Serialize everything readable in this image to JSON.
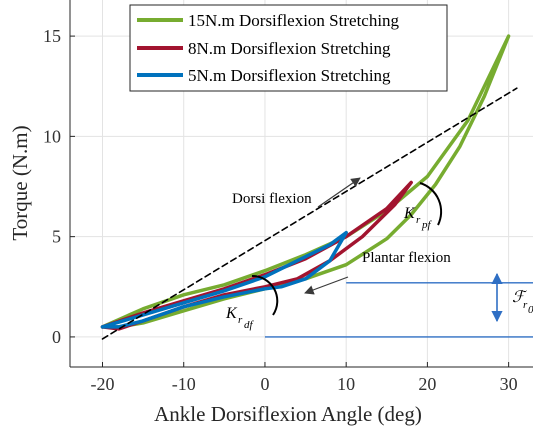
{
  "chart_data": {
    "type": "line",
    "xlabel": "Ankle Dorsiflexion Angle (deg)",
    "ylabel": "Torque (N.m)",
    "xlim": [
      -24,
      33
    ],
    "ylim": [
      -1.5,
      16.8
    ],
    "xticks": [
      "-20",
      "-10",
      "0",
      "10",
      "20",
      "30"
    ],
    "yticks": [
      "0",
      "5",
      "10",
      "15"
    ],
    "grid": true,
    "legend_position": "top",
    "series": [
      {
        "name": "15N.m Dorsiflexion Stretching",
        "color": "#77ac30",
        "x": [
          -20,
          -15,
          -10,
          -5,
          0,
          5,
          10,
          15,
          20,
          25,
          30,
          27,
          24,
          21,
          18,
          15,
          10,
          5,
          0,
          -5,
          -10,
          -15,
          -18,
          -20
        ],
        "y": [
          0.5,
          1.4,
          2.1,
          2.6,
          3.3,
          4.1,
          5.0,
          6.3,
          8.0,
          10.8,
          15.0,
          12.0,
          9.5,
          7.6,
          6.1,
          4.9,
          3.6,
          2.9,
          2.4,
          1.9,
          1.3,
          0.7,
          0.5,
          0.5
        ]
      },
      {
        "name": "8N.m Dorsiflexion Stretching",
        "color": "#a2142f",
        "x": [
          -20,
          -15,
          -10,
          -5,
          0,
          5,
          10,
          15,
          18,
          16,
          12,
          8,
          4,
          0,
          -5,
          -10,
          -15,
          -18,
          -20
        ],
        "y": [
          0.5,
          1.2,
          1.8,
          2.4,
          3.1,
          3.9,
          5.0,
          6.4,
          7.7,
          6.6,
          5.0,
          3.8,
          2.9,
          2.5,
          2.1,
          1.5,
          0.8,
          0.4,
          0.5
        ]
      },
      {
        "name": "5N.m Dorsiflexion Stretching",
        "color": "#0072bd",
        "x": [
          -20,
          -15,
          -10,
          -5,
          0,
          4,
          8,
          10,
          8,
          5,
          2,
          0,
          -5,
          -10,
          -15,
          -18,
          -20
        ],
        "y": [
          0.5,
          1.1,
          1.7,
          2.3,
          3.0,
          3.8,
          4.6,
          5.2,
          3.8,
          2.9,
          2.5,
          2.4,
          2.0,
          1.5,
          0.8,
          0.5,
          0.5
        ]
      },
      {
        "color": "#000000",
        "style": "dashed",
        "x": [
          -20,
          31
        ],
        "y": [
          -0.1,
          12.4
        ]
      }
    ],
    "reference_lines": {
      "color": "#2f6fc4",
      "y": [
        2.7,
        0
      ],
      "x_start": [
        10,
        0
      ]
    },
    "annotations": {
      "dorsi_flexion": "Dorsi flexion",
      "plantar_flexion": "Plantar flexion",
      "k_main": "K",
      "k_sub_r": "r",
      "k_sub_pf": "pf",
      "k_sub_df": "df",
      "f_main": "ℱ",
      "f_sub": "r",
      "f_sub_trunc": "0"
    }
  }
}
